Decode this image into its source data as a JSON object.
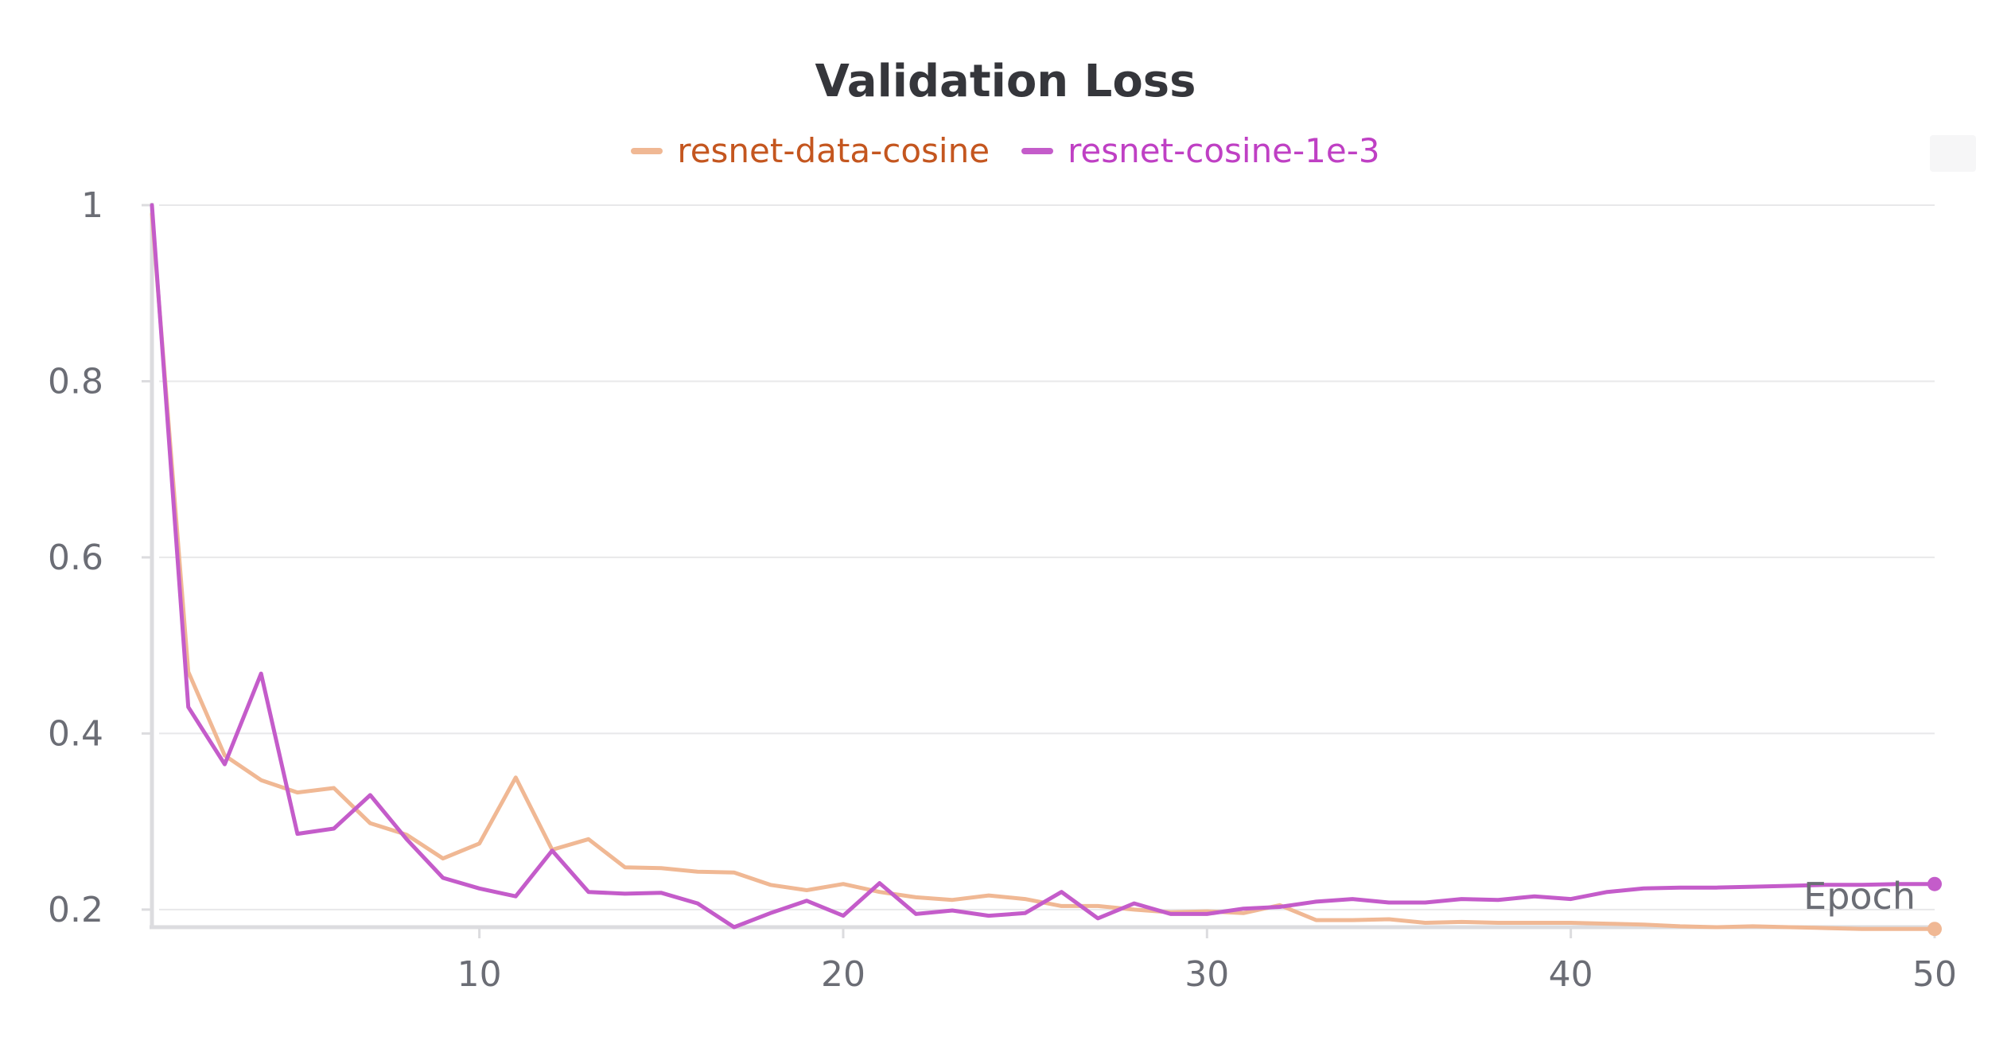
{
  "chart_data": {
    "type": "line",
    "title": "Validation Loss",
    "xlabel": "Epoch",
    "ylabel": "",
    "xlim": [
      1,
      50
    ],
    "ylim": [
      0.18,
      1
    ],
    "xticks": [
      10,
      20,
      30,
      40,
      50
    ],
    "yticks": [
      0.2,
      0.4,
      0.6,
      0.8,
      1
    ],
    "grid": "horizontal",
    "legend_position": "top-center",
    "series": [
      {
        "name": "resnet-data-cosine",
        "color": "#f0b894",
        "label_color": "#c4561f",
        "x": [
          1,
          2,
          3,
          4,
          5,
          6,
          7,
          8,
          9,
          10,
          11,
          12,
          13,
          14,
          15,
          16,
          17,
          18,
          19,
          20,
          21,
          22,
          23,
          24,
          25,
          26,
          27,
          28,
          29,
          30,
          31,
          32,
          33,
          34,
          35,
          36,
          37,
          38,
          39,
          40,
          41,
          42,
          43,
          44,
          45,
          46,
          47,
          48,
          49,
          50
        ],
        "values": [
          0.99,
          0.47,
          0.375,
          0.347,
          0.333,
          0.338,
          0.298,
          0.285,
          0.258,
          0.275,
          0.35,
          0.268,
          0.28,
          0.248,
          0.247,
          0.243,
          0.242,
          0.228,
          0.222,
          0.229,
          0.22,
          0.214,
          0.211,
          0.216,
          0.212,
          0.204,
          0.204,
          0.2,
          0.197,
          0.198,
          0.196,
          0.205,
          0.188,
          0.188,
          0.189,
          0.185,
          0.186,
          0.185,
          0.185,
          0.185,
          0.184,
          0.183,
          0.181,
          0.18,
          0.181,
          0.18,
          0.179,
          0.178,
          0.178,
          0.178
        ]
      },
      {
        "name": "resnet-cosine-1e-3",
        "color": "#c45cca",
        "label_color": "#bf40c4",
        "x": [
          1,
          2,
          3,
          4,
          5,
          6,
          7,
          8,
          9,
          10,
          11,
          12,
          13,
          14,
          15,
          16,
          17,
          18,
          19,
          20,
          21,
          22,
          23,
          24,
          25,
          26,
          27,
          28,
          29,
          30,
          31,
          32,
          33,
          34,
          35,
          36,
          37,
          38,
          39,
          40,
          41,
          42,
          43,
          44,
          45,
          46,
          47,
          48,
          49,
          50
        ],
        "values": [
          1.0,
          0.43,
          0.365,
          0.468,
          0.286,
          0.292,
          0.33,
          0.28,
          0.236,
          0.224,
          0.215,
          0.267,
          0.22,
          0.218,
          0.219,
          0.207,
          0.18,
          0.196,
          0.21,
          0.193,
          0.23,
          0.195,
          0.199,
          0.193,
          0.196,
          0.22,
          0.19,
          0.207,
          0.195,
          0.195,
          0.201,
          0.203,
          0.209,
          0.212,
          0.208,
          0.208,
          0.212,
          0.211,
          0.215,
          0.212,
          0.22,
          0.224,
          0.225,
          0.225,
          0.226,
          0.227,
          0.228,
          0.228,
          0.229,
          0.229
        ]
      }
    ]
  }
}
